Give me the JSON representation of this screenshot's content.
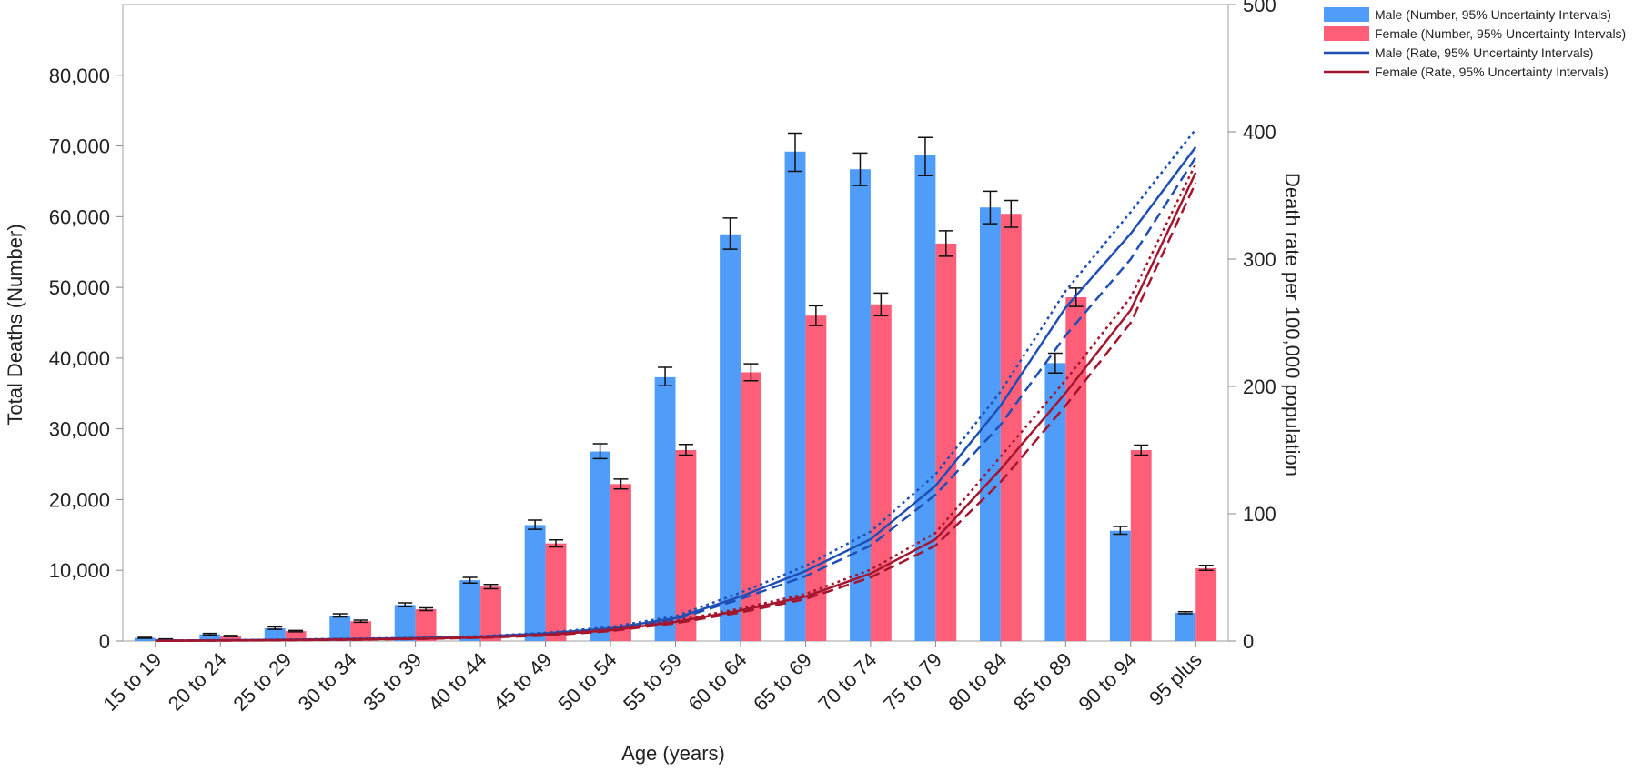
{
  "chart_data": {
    "type": "bar",
    "categories": [
      "15 to 19",
      "20 to 24",
      "25 to 29",
      "30 to 34",
      "35 to 39",
      "40 to 44",
      "45 to 49",
      "50 to 54",
      "55 to 59",
      "60 to 64",
      "65 to 69",
      "70 to 74",
      "75 to 79",
      "80 to 84",
      "85 to 89",
      "90 to 94",
      "95 plus"
    ],
    "xlabel": "Age (years)",
    "ylabel": "Total Deaths (Number)",
    "y2label": "Death rate per 100,000 population",
    "ylim": [
      0,
      90000
    ],
    "y2lim": [
      0,
      500
    ],
    "yticks": [
      0,
      10000,
      20000,
      30000,
      40000,
      50000,
      60000,
      70000,
      80000
    ],
    "yticklabels": [
      "0",
      "10,000",
      "20,000",
      "30,000",
      "40,000",
      "50,000",
      "60,000",
      "70,000",
      "80,000"
    ],
    "y2ticks": [
      0,
      100,
      200,
      300,
      400,
      500
    ],
    "y2ticklabels": [
      "0",
      "100",
      "200",
      "300",
      "400",
      "500"
    ],
    "legend_position": "top-right",
    "series": [
      {
        "name": "Male (Number, 95% Uncertainty Intervals)",
        "kind": "bar",
        "color": "#4f9cf9",
        "values": [
          450,
          950,
          1800,
          3600,
          5100,
          8600,
          16400,
          26800,
          37300,
          57500,
          69200,
          66700,
          68700,
          61300,
          39300,
          15600,
          4000
        ],
        "lower": [
          380,
          830,
          1650,
          3400,
          4850,
          8200,
          15800,
          25800,
          36100,
          55400,
          66400,
          64400,
          65800,
          59000,
          37900,
          15100,
          3850
        ],
        "upper": [
          520,
          1080,
          2000,
          3850,
          5400,
          9000,
          17100,
          27900,
          38700,
          59800,
          71800,
          69000,
          71200,
          63600,
          40700,
          16200,
          4150
        ]
      },
      {
        "name": "Female (Number, 95% Uncertainty Intervals)",
        "kind": "bar",
        "color": "#ff5e79",
        "values": [
          250,
          700,
          1400,
          2800,
          4500,
          7700,
          13800,
          22200,
          27000,
          38000,
          46000,
          47600,
          56200,
          60400,
          48600,
          27000,
          10300
        ],
        "lower": [
          200,
          620,
          1300,
          2650,
          4300,
          7400,
          13300,
          21500,
          26300,
          36800,
          44600,
          46000,
          54400,
          58500,
          47300,
          26300,
          10000
        ],
        "upper": [
          300,
          780,
          1500,
          2950,
          4700,
          8000,
          14300,
          22900,
          27800,
          39200,
          47400,
          49200,
          58000,
          62300,
          49900,
          27700,
          10700
        ]
      },
      {
        "name": "Male (Rate, 95% Uncertainty Intervals)",
        "kind": "line",
        "color": "#1f4fb4",
        "values": [
          0.3,
          0.6,
          1,
          1.6,
          2.3,
          3.5,
          6,
          10,
          18,
          35,
          55,
          80,
          122,
          185,
          262,
          320,
          388
        ],
        "lower": [
          0.25,
          0.5,
          0.9,
          1.4,
          2.1,
          3.2,
          5.5,
          9.5,
          17,
          33,
          51,
          75,
          115,
          170,
          240,
          300,
          380
        ],
        "upper": [
          0.35,
          0.7,
          1.1,
          1.8,
          2.5,
          3.8,
          6.5,
          11,
          19.5,
          38,
          59,
          86,
          131,
          196,
          275,
          337,
          402
        ]
      },
      {
        "name": "Female (Rate, 95% Uncertainty Intervals)",
        "kind": "line",
        "color": "#a3162e",
        "values": [
          0.2,
          0.4,
          0.7,
          1.2,
          1.8,
          2.8,
          4.8,
          8.5,
          15,
          24,
          35,
          53,
          80,
          135,
          195,
          260,
          368
        ],
        "lower": [
          0.15,
          0.35,
          0.6,
          1,
          1.6,
          2.5,
          4.3,
          7.8,
          14,
          22.5,
          33,
          50,
          75,
          125,
          185,
          250,
          360
        ],
        "upper": [
          0.25,
          0.45,
          0.8,
          1.4,
          2,
          3.1,
          5.3,
          9.2,
          16,
          25.5,
          37,
          56,
          85,
          145,
          205,
          270,
          375
        ]
      }
    ]
  }
}
